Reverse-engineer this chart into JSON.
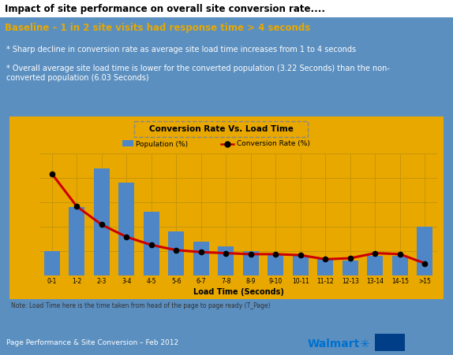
{
  "title": "Impact of site performance on overall site conversion rate....",
  "subtitle": "Baseline – 1 in 2 site visits had response time > 4 seconds",
  "bullet1": "* Sharp decline in conversion rate as average site load time increases from 1 to 4 seconds",
  "bullet2": "* Overall average site load time is lower for the converted population (3.22 Seconds) than the non-\nconverted population (6.03 Seconds)",
  "chart_title": "Conversion Rate Vs. Load Time",
  "xlabel": "Load Time (Seconds)",
  "note": "Note: Load Time here is the time taken from head of the page to page ready (T_Page)",
  "footer": "Page Performance & Site Conversion – Feb 2012",
  "walmart_text": "Walmart",
  "categories": [
    "0-1",
    "1-2",
    "2-3",
    "3-4",
    "4-5",
    "5-6",
    "6-7",
    "7-8",
    "8-9",
    "9-10",
    "10-11",
    "11-12",
    "12-13",
    "13-14",
    "14-15",
    ">15"
  ],
  "population": [
    5,
    14,
    22,
    19,
    13,
    9,
    7,
    6,
    5,
    4.5,
    4,
    3.5,
    3,
    4,
    4,
    10
  ],
  "conversion": [
    100,
    68,
    50,
    38,
    30,
    25,
    23,
    22,
    21,
    21,
    20,
    16,
    17,
    22,
    21,
    12
  ],
  "bar_color": "#4f86c6",
  "line_color": "#cc0000",
  "chart_bg": "#e8a800",
  "outer_bg": "#5b8fc0",
  "subtitle_bg": "#5b8fc0",
  "grid_color": "#c8960a",
  "legend_bar_label": "Population (%)",
  "legend_line_label": "Conversion Rate (%)",
  "title_color": "#000000",
  "subtitle_color": "#e8a800",
  "bullet_color": "#ffffff",
  "note_color": "#333333",
  "footer_color": "#ffffff",
  "walmart_color": "#0071ce"
}
